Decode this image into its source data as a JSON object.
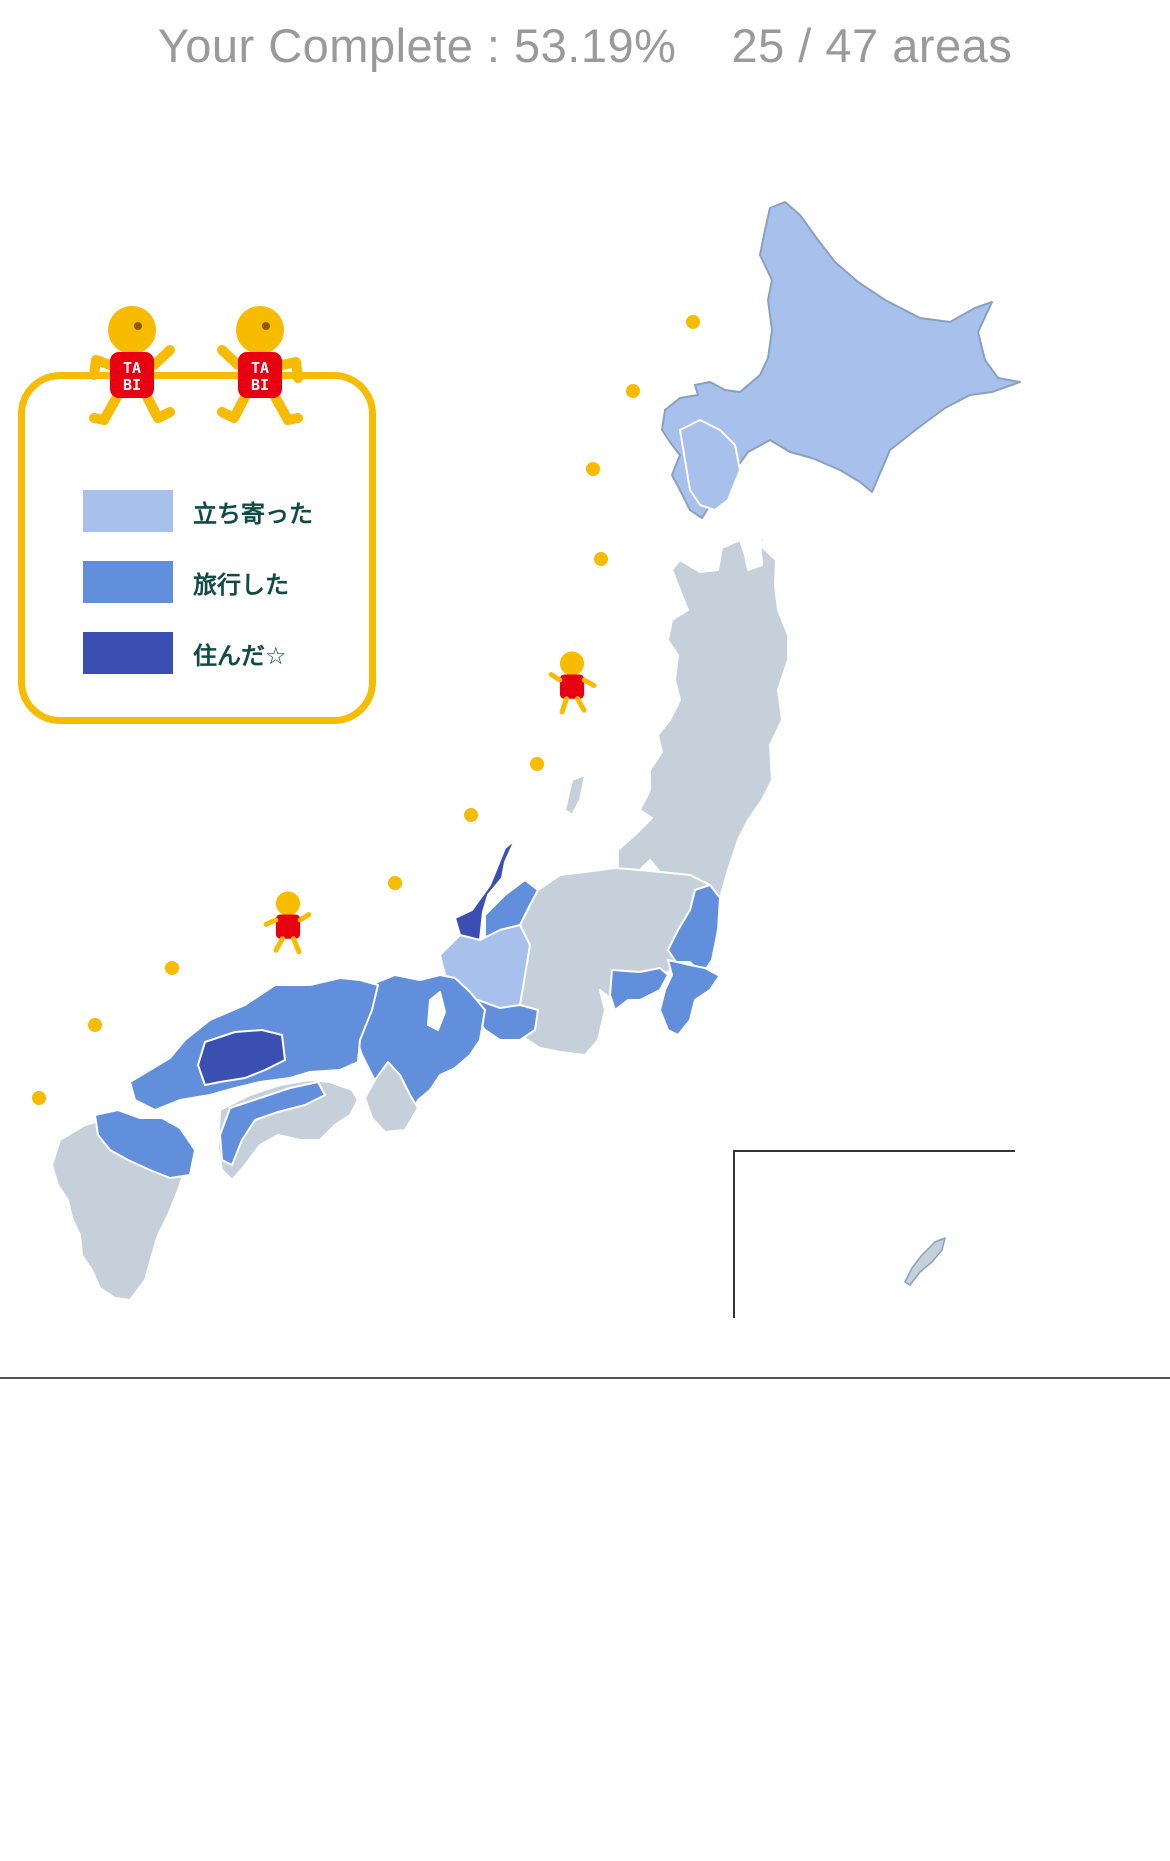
{
  "header": {
    "complete_label": "Your Complete : 53.19%",
    "areas_label": "25 / 47 areas"
  },
  "progress": {
    "completion_percent": 53.19,
    "visited_areas": 25,
    "total_areas": 47
  },
  "colors": {
    "unvisited": "#c5d0da",
    "stopped_by": "#a8c1ec",
    "traveled": "#618fdb",
    "lived": "#3b4fb3",
    "accent_yellow": "#f7bb00",
    "mascot_red": "#e60012",
    "border": "#ffffff"
  },
  "legend": {
    "items": [
      {
        "label": "立ち寄った",
        "color": "#a8c1ec"
      },
      {
        "label": "旅行した",
        "color": "#618fdb"
      },
      {
        "label": "住んだ☆",
        "color": "#3b4fb3"
      }
    ]
  },
  "mascot": {
    "shirt_line1": "TA",
    "shirt_line2": "BI"
  },
  "icons": [
    "tabi-mascot-icon",
    "footprint-dot-icon"
  ]
}
